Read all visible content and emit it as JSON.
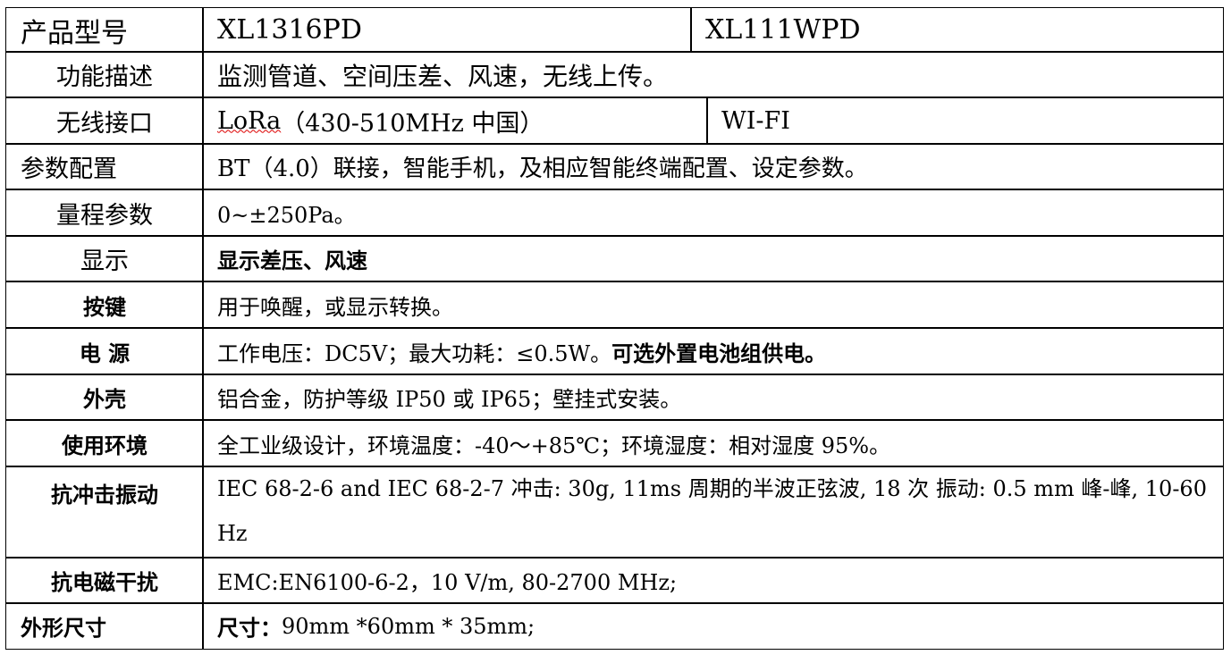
{
  "rows": [
    {
      "label": "产品型号",
      "values": [
        "XL1316PD",
        "XL111WPD"
      ]
    },
    {
      "label": "功能描述",
      "value": "监测管道、空间压差、风速，无线上传。"
    },
    {
      "label": "无线接口",
      "values": [
        "LoRa",
        "（430-510MHz 中国）",
        "WI-FI"
      ]
    },
    {
      "label": "参数配置",
      "value": "BT（4.0）联接，智能手机，及相应智能终端配置、设定参数。"
    },
    {
      "label": "量程参数",
      "value": "0~±250Pa。"
    },
    {
      "label": "显示",
      "value": "显示差压、风速"
    },
    {
      "label": "按键",
      "value": "用于唤醒，或显示转换。"
    },
    {
      "label": "电 源",
      "value": "工作电压：DC5V；最大功耗：≤0.5W。",
      "value_bold": "可选外置电池组供电。"
    },
    {
      "label": "外壳",
      "value": "铝合金，防护等级 IP50 或 IP65；壁挂式安装。"
    },
    {
      "label": "使用环境",
      "value": "全工业级设计，环境温度：-40～+85℃；环境湿度：相对湿度 95%。"
    },
    {
      "label": "抗冲击振动",
      "value": "IEC 68-2-6 and IEC 68-2-7 冲击: 30g, 11ms 周期的半波正弦波, 18 次 振动: 0.5 mm 峰-峰, 10-60 Hz"
    },
    {
      "label": "抗电磁干扰",
      "value": "EMC:EN6100-6-2，10 V/m, 80-2700 MHz;"
    },
    {
      "label": "外形尺寸",
      "value_bold": "尺寸：",
      "value": "90mm *60mm * 35mm;"
    }
  ]
}
